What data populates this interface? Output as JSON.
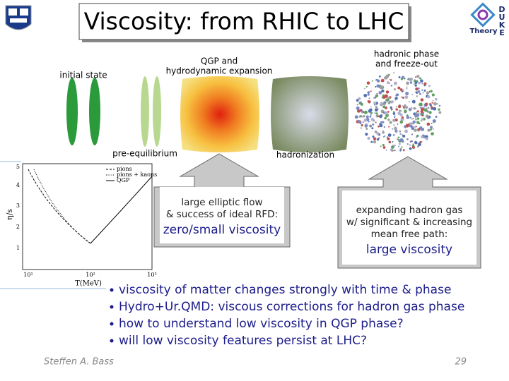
{
  "title": "Viscosity: from RHIC to LHC",
  "logo": {
    "text": "Theory",
    "letters": [
      "D",
      "U",
      "K",
      "E"
    ]
  },
  "stages": {
    "initial": "initial state",
    "pre": "pre-equilibrium",
    "qgp": [
      "QGP and",
      "hydrodynamic expansion"
    ],
    "hadronization": "hadronization",
    "hadronic": [
      "hadronic phase",
      "and freeze-out"
    ]
  },
  "plot": {
    "y_label": "η/s",
    "x_label": "T(MeV)",
    "legend": [
      "pions",
      "pions + kaons",
      "QGP"
    ],
    "yticks": [
      "1",
      "2",
      "3",
      "4",
      "5"
    ],
    "xticks": [
      "10¹",
      "10²",
      "10³"
    ]
  },
  "callouts": [
    {
      "lines": [
        "large elliptic flow",
        "& success of ideal RFD:"
      ],
      "emphasis": "zero/small viscosity"
    },
    {
      "lines": [
        "expanding hadron gas",
        "w/ significant & increasing",
        "mean free path:"
      ],
      "emphasis": "large viscosity"
    }
  ],
  "bullets": [
    "viscosity of matter changes strongly with time & phase",
    "Hydro+Ur.QMD: viscous corrections for hadron gas phase",
    "how to understand low viscosity in QGP phase?",
    "will low viscosity features persist at LHC?"
  ],
  "footer": {
    "author": "Steffen A. Bass",
    "page": "29"
  }
}
